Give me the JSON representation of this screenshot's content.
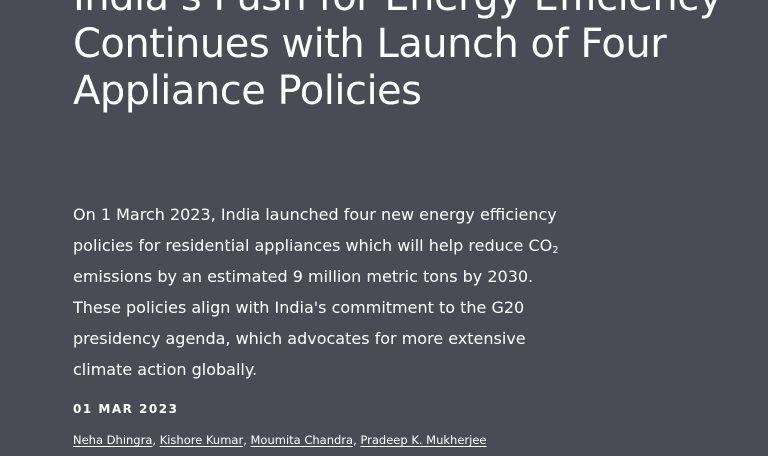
{
  "article": {
    "title_lines": [
      "India’s Push for Energy Efficiency",
      "Continues with Launch of Four",
      "Appliance Policies"
    ],
    "summary": {
      "line1": "On 1 March 2023, India launched four new energy efficiency",
      "line2_before": "policies for residential appliances which will help reduce CO",
      "line2_sub": "2",
      "line3": "emissions by an estimated 9 million metric tons by 2030.",
      "line4": "These policies align with India's commitment to the G20",
      "line5": "presidency agenda, which advocates for more extensive",
      "line6": "climate action globally."
    },
    "date": "01 MAR 2023",
    "authors": [
      "Neha Dhingra",
      "Kishore Kumar",
      "Moumita Chandra",
      "Pradeep K. Mukherjee"
    ],
    "author_separator": ","
  }
}
